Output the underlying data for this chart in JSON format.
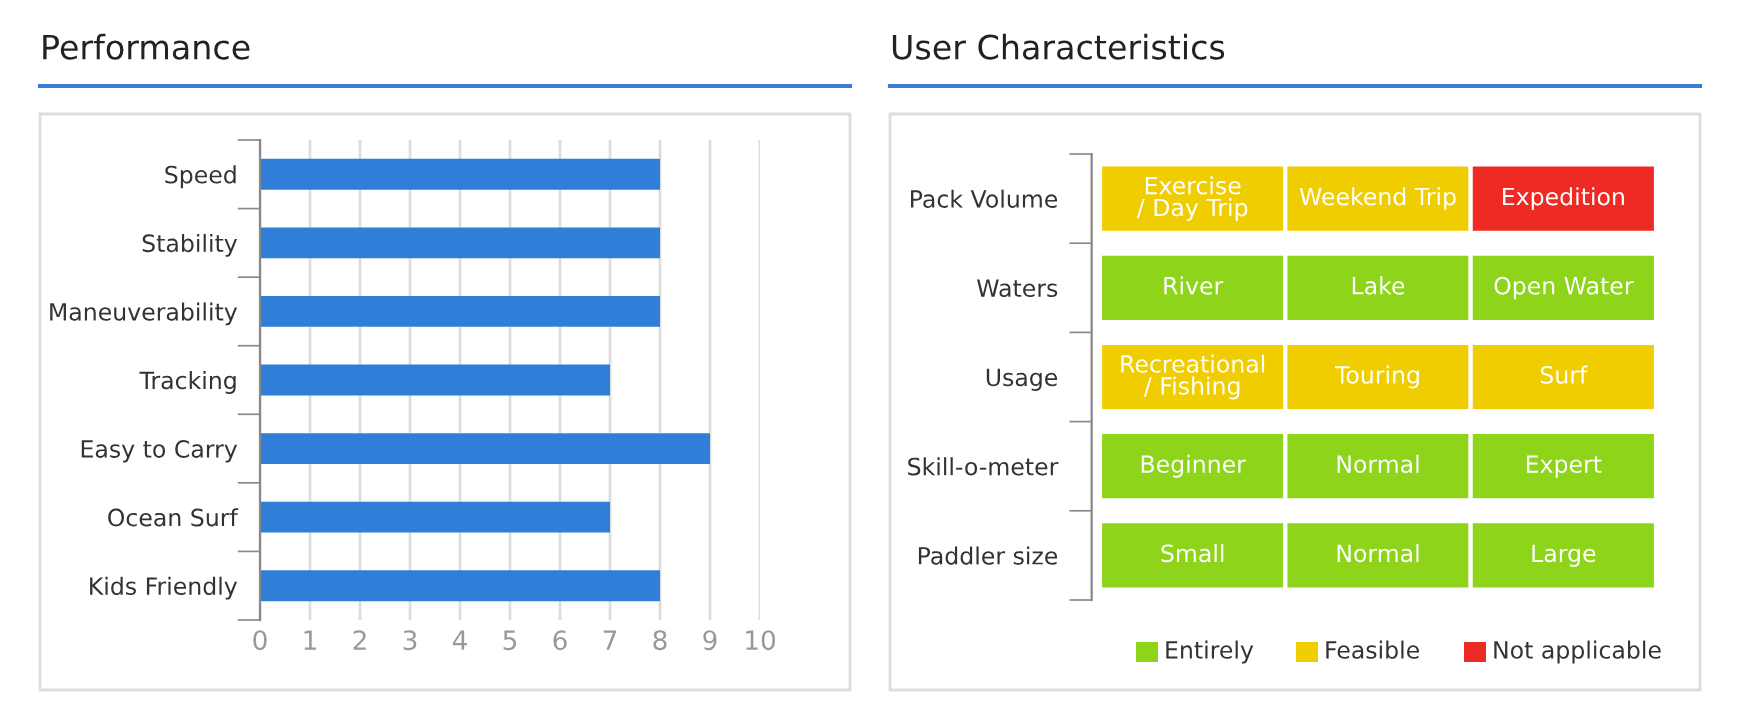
{
  "chart_data": [
    {
      "type": "bar",
      "title": "Performance",
      "orientation": "horizontal",
      "categories": [
        "Speed",
        "Stability",
        "Maneuverability",
        "Tracking",
        "Easy to Carry",
        "Ocean Surf",
        "Kids Friendly"
      ],
      "values": [
        8,
        8,
        8,
        7,
        9,
        7,
        8
      ],
      "color": "#2f7ed8",
      "xlim": [
        0,
        10
      ],
      "xticks": [
        0,
        1,
        2,
        3,
        4,
        5,
        6,
        7,
        8,
        9,
        10
      ],
      "grid": "x",
      "legend": false
    },
    {
      "type": "other",
      "title": "User Characteristics",
      "y_categories": [
        "Pack Volume",
        "Waters",
        "Usage",
        "Skill-o-meter",
        "Paddler size"
      ],
      "cell_labels": [
        [
          "Exercise\n/ Day Trip",
          "Weekend Trip",
          "Expedition"
        ],
        [
          "River",
          "Lake",
          "Open Water"
        ],
        [
          "Recreational\n/ Fishing",
          "Touring",
          "Surf"
        ],
        [
          "Beginner",
          "Normal",
          "Expert"
        ],
        [
          "Small",
          "Normal",
          "Large"
        ]
      ],
      "colors": [
        "#f0cd00",
        "#f0cd00",
        "#ee2a24",
        "#8dd41a",
        "#8dd41a",
        "#8dd41a",
        "#f0cd00",
        "#f0cd00",
        "#f0cd00",
        "#8dd41a",
        "#8dd41a",
        "#8dd41a",
        "#8dd41a",
        "#8dd41a",
        "#8dd41a"
      ],
      "annotations": [
        "Entirely",
        "Feasible",
        "Not applicable"
      ]
    }
  ]
}
